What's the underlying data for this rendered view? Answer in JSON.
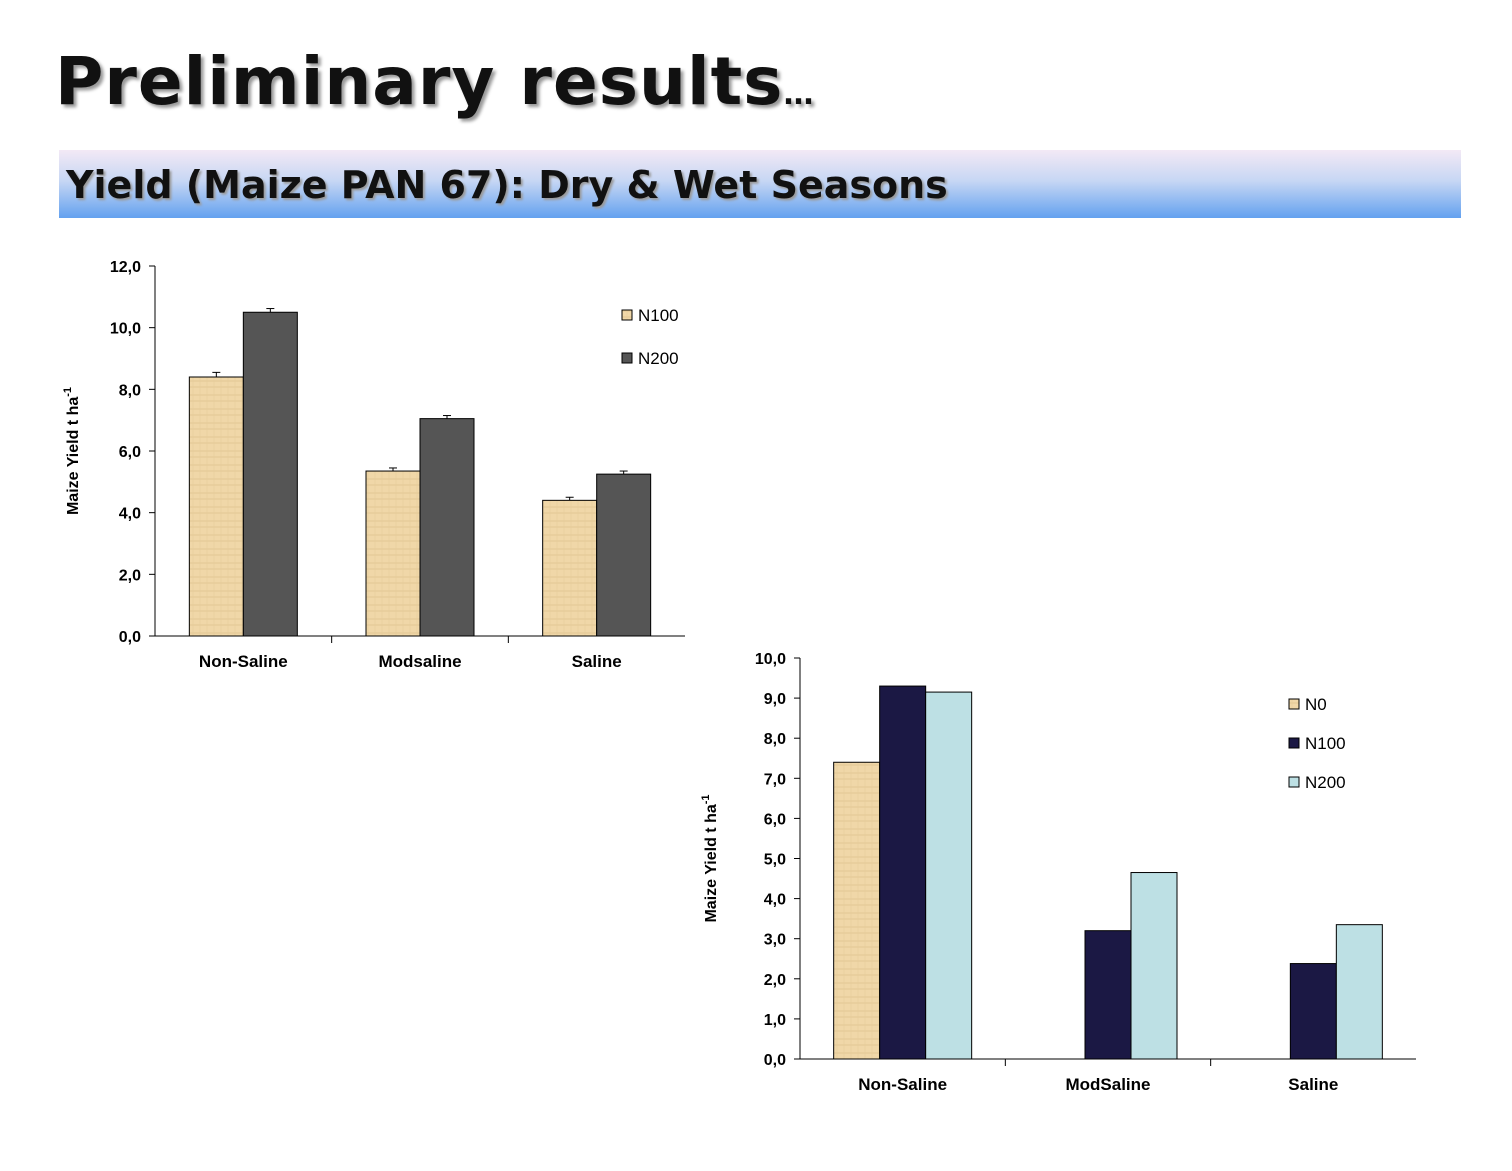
{
  "slide": {
    "title": "Preliminary results",
    "title_suffix": "…",
    "subtitle": "Yield (Maize PAN 67): Dry & Wet Seasons"
  },
  "colors": {
    "N0": "#f0d7a8",
    "N100_dark": "#555555",
    "N100_navy": "#1b1844",
    "N200_light": "#bde0e4",
    "N200_dark": "#555555"
  },
  "chart_data": [
    {
      "type": "bar",
      "title": "",
      "ylabel": "Maize Yield t ha",
      "ylabel_sup": "-1",
      "ylim": [
        0,
        12
      ],
      "yticks": [
        "0,0",
        "2,0",
        "4,0",
        "6,0",
        "8,0",
        "10,0",
        "12,0"
      ],
      "categories": [
        "Non-Saline",
        "Modsaline",
        "Saline"
      ],
      "series": [
        {
          "name": "N100",
          "values": [
            8.4,
            5.35,
            4.4
          ],
          "errors": [
            0.15,
            0.1,
            0.1
          ],
          "color": "#f0d7a8"
        },
        {
          "name": "N200",
          "values": [
            10.5,
            7.05,
            5.25
          ],
          "errors": [
            0.12,
            0.1,
            0.1
          ],
          "color": "#555555"
        }
      ],
      "legend": "top-right",
      "grid": false
    },
    {
      "type": "bar",
      "title": "",
      "ylabel": "Maize Yield t ha",
      "ylabel_sup": "-1",
      "ylim": [
        0,
        10
      ],
      "yticks": [
        "0,0",
        "1,0",
        "2,0",
        "3,0",
        "4,0",
        "5,0",
        "6,0",
        "7,0",
        "8,0",
        "9,0",
        "10,0"
      ],
      "categories": [
        "Non-Saline",
        "ModSaline",
        "Saline"
      ],
      "series": [
        {
          "name": "N0",
          "values": [
            7.4,
            null,
            null
          ],
          "color": "#f0d7a8"
        },
        {
          "name": "N100",
          "values": [
            9.3,
            3.2,
            2.38
          ],
          "color": "#1b1844"
        },
        {
          "name": "N200",
          "values": [
            9.15,
            4.65,
            3.35
          ],
          "color": "#bde0e4"
        }
      ],
      "legend": "top-right",
      "grid": false
    }
  ]
}
